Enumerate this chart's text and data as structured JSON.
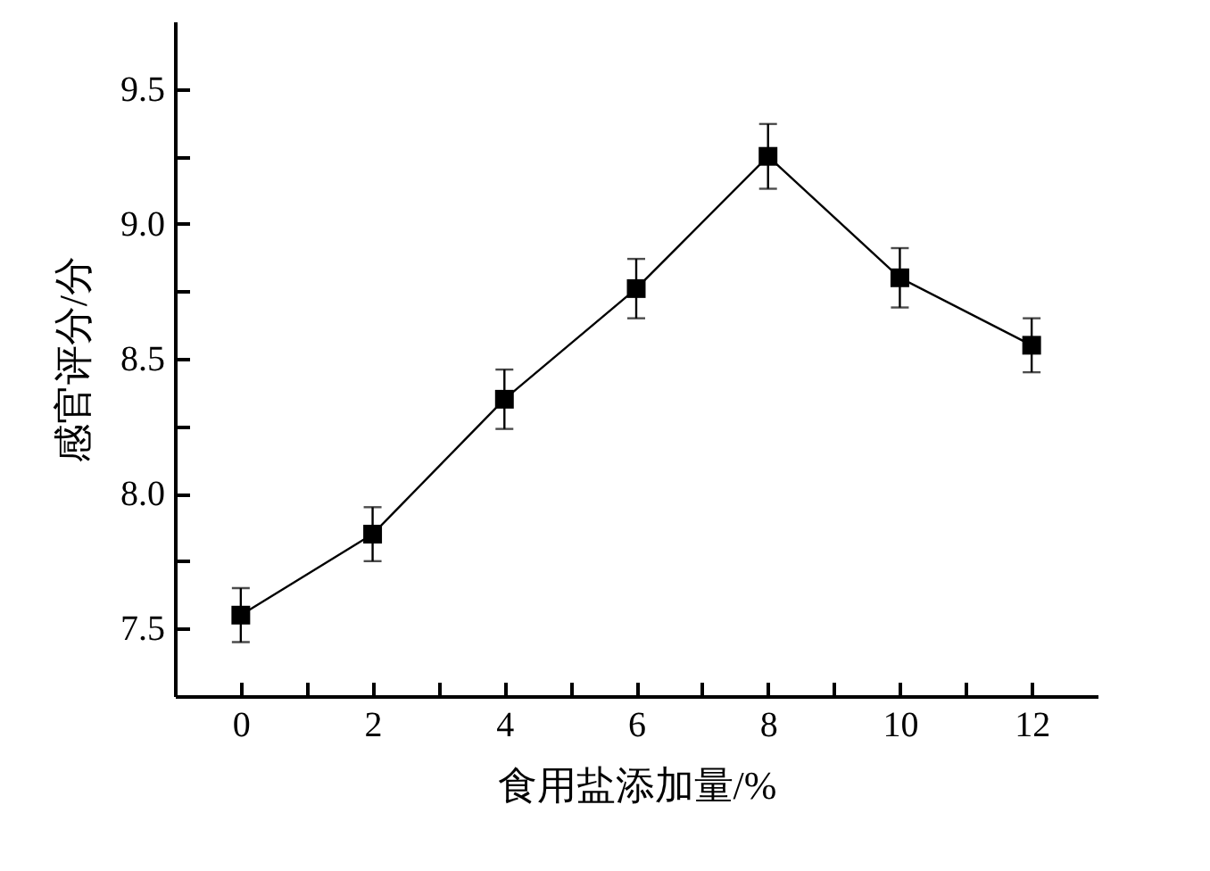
{
  "chart_data": {
    "type": "line",
    "xlabel": "食用盐添加量/%",
    "ylabel": "感官评分/分",
    "x": [
      0,
      2,
      4,
      6,
      8,
      10,
      12
    ],
    "series": [
      {
        "color": "#000000",
        "values": [
          7.55,
          7.85,
          8.35,
          8.76,
          9.25,
          8.8,
          8.55
        ],
        "errors": [
          0.1,
          0.1,
          0.11,
          0.11,
          0.12,
          0.11,
          0.1
        ]
      }
    ],
    "xlim": [
      -1,
      13
    ],
    "xticks": [
      0,
      {
        "value": 1,
        "label": null
      },
      2,
      {
        "value": 3,
        "label": null
      },
      4,
      {
        "value": 5,
        "label": null
      },
      6,
      {
        "value": 7,
        "label": null
      },
      8,
      {
        "value": 9,
        "label": null
      },
      10,
      {
        "value": 11,
        "label": null
      },
      12
    ],
    "ylim": [
      7.25,
      9.75
    ],
    "yticks": [
      {
        "value": 7.5,
        "label": "7.5"
      },
      {
        "value": 7.75,
        "label": null
      },
      {
        "value": 8,
        "label": "8.0"
      },
      {
        "value": 8.25,
        "label": null
      },
      {
        "value": 8.5,
        "label": "8.5"
      },
      {
        "value": 8.75,
        "label": null
      },
      {
        "value": 9,
        "label": "9.0"
      },
      {
        "value": 9.25,
        "label": null
      },
      {
        "value": 9.5,
        "label": "9.5"
      }
    ],
    "marker": "square",
    "line_style": "solid",
    "grid": false
  }
}
